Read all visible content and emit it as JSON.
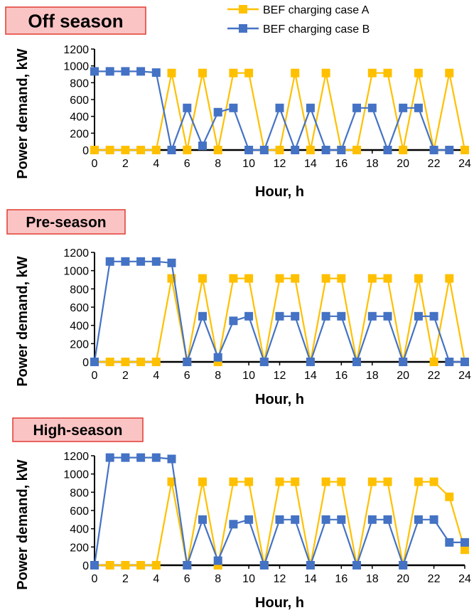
{
  "legend": [
    {
      "label": "BEF charging case A",
      "color": "#FFC000"
    },
    {
      "label": "BEF charging case B",
      "color": "#4472C4"
    }
  ],
  "chart_data": [
    {
      "type": "line",
      "panel_label": "Off season",
      "xlabel": "Hour, h",
      "ylabel": "Power demand, kW",
      "xlim": [
        0,
        24
      ],
      "ylim": [
        0,
        1200
      ],
      "x_ticks": [
        0,
        2,
        4,
        6,
        8,
        10,
        12,
        14,
        16,
        18,
        20,
        22,
        24
      ],
      "y_ticks": [
        0,
        200,
        400,
        600,
        800,
        1000,
        1200
      ],
      "x": [
        0,
        1,
        2,
        3,
        4,
        5,
        6,
        7,
        8,
        9,
        10,
        11,
        12,
        13,
        14,
        15,
        16,
        17,
        18,
        19,
        20,
        21,
        22,
        23,
        24
      ],
      "series": [
        {
          "name": "BEF charging case A",
          "color": "#FFC000",
          "values": [
            0,
            0,
            0,
            0,
            0,
            915,
            0,
            915,
            0,
            915,
            915,
            0,
            0,
            915,
            0,
            915,
            0,
            0,
            915,
            915,
            0,
            915,
            0,
            915,
            0
          ]
        },
        {
          "name": "BEF charging case B",
          "color": "#4472C4",
          "values": [
            935,
            935,
            935,
            935,
            920,
            0,
            500,
            50,
            450,
            500,
            0,
            0,
            500,
            0,
            500,
            0,
            0,
            500,
            500,
            0,
            500,
            500,
            0,
            0,
            null
          ]
        }
      ]
    },
    {
      "type": "line",
      "panel_label": "Pre-season",
      "xlabel": "Hour, h",
      "ylabel": "Power demand, kW",
      "xlim": [
        0,
        24
      ],
      "ylim": [
        0,
        1200
      ],
      "x_ticks": [
        0,
        2,
        4,
        6,
        8,
        10,
        12,
        14,
        16,
        18,
        20,
        22,
        24
      ],
      "y_ticks": [
        0,
        200,
        400,
        600,
        800,
        1000,
        1200
      ],
      "x": [
        0,
        1,
        2,
        3,
        4,
        5,
        6,
        7,
        8,
        9,
        10,
        11,
        12,
        13,
        14,
        15,
        16,
        17,
        18,
        19,
        20,
        21,
        22,
        23,
        24
      ],
      "series": [
        {
          "name": "BEF charging case A",
          "color": "#FFC000",
          "values": [
            0,
            0,
            0,
            0,
            0,
            915,
            0,
            915,
            0,
            915,
            915,
            0,
            915,
            915,
            0,
            915,
            915,
            0,
            915,
            915,
            0,
            915,
            0,
            915,
            0
          ]
        },
        {
          "name": "BEF charging case B",
          "color": "#4472C4",
          "values": [
            0,
            1100,
            1100,
            1100,
            1100,
            1085,
            0,
            500,
            50,
            450,
            500,
            0,
            500,
            500,
            0,
            500,
            500,
            0,
            500,
            500,
            0,
            500,
            500,
            0,
            0
          ]
        }
      ]
    },
    {
      "type": "line",
      "panel_label": "High-season",
      "xlabel": "Hour, h",
      "ylabel": "Power demand, kW",
      "xlim": [
        0,
        24
      ],
      "ylim": [
        0,
        1200
      ],
      "x_ticks": [
        0,
        2,
        4,
        6,
        8,
        10,
        12,
        14,
        16,
        18,
        20,
        22,
        24
      ],
      "y_ticks": [
        0,
        200,
        400,
        600,
        800,
        1000,
        1200
      ],
      "x": [
        0,
        1,
        2,
        3,
        4,
        5,
        6,
        7,
        8,
        9,
        10,
        11,
        12,
        13,
        14,
        15,
        16,
        17,
        18,
        19,
        20,
        21,
        22,
        23,
        24
      ],
      "series": [
        {
          "name": "BEF charging case A",
          "color": "#FFC000",
          "values": [
            0,
            0,
            0,
            0,
            0,
            915,
            0,
            915,
            0,
            915,
            915,
            0,
            915,
            915,
            0,
            915,
            915,
            0,
            915,
            915,
            0,
            915,
            915,
            750,
            170
          ]
        },
        {
          "name": "BEF charging case B",
          "color": "#4472C4",
          "values": [
            0,
            1180,
            1180,
            1180,
            1180,
            1165,
            0,
            500,
            50,
            450,
            500,
            0,
            500,
            500,
            0,
            500,
            500,
            0,
            500,
            500,
            0,
            500,
            500,
            250,
            250
          ]
        }
      ]
    }
  ]
}
